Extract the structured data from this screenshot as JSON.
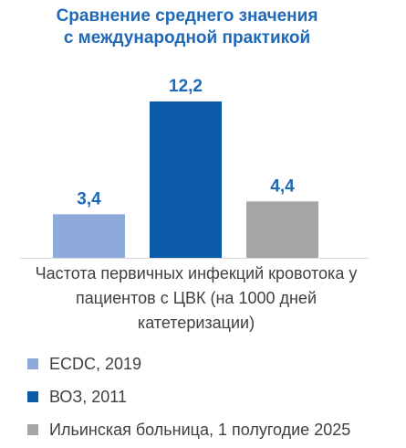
{
  "chart_data": {
    "type": "bar",
    "title": [
      "Сравнение среднего значения",
      "с международной практикой"
    ],
    "xlabel": [
      "Частота первичных инфекций кровотока у",
      "пациентов с ЦВК (на 1000 дней",
      "катетеризации)"
    ],
    "ylabel": "",
    "series": [
      {
        "name": "ECDC, 2019",
        "values": [
          3.4
        ],
        "label": "3,4",
        "color": "#8eaadb"
      },
      {
        "name": "ВОЗ, 2011",
        "values": [
          12.2
        ],
        "label": "12,2",
        "color": "#0a5aa9"
      },
      {
        "name": "Ильинская больница, 1 полугодие 2025",
        "values": [
          4.4
        ],
        "label": "4,4",
        "color": "#a5a5a5"
      }
    ],
    "ylim": [
      0,
      12.2
    ],
    "grid": false,
    "legend_position": "bottom",
    "label_color": "#1f69b8",
    "axis_color": "#d9d9d9"
  }
}
